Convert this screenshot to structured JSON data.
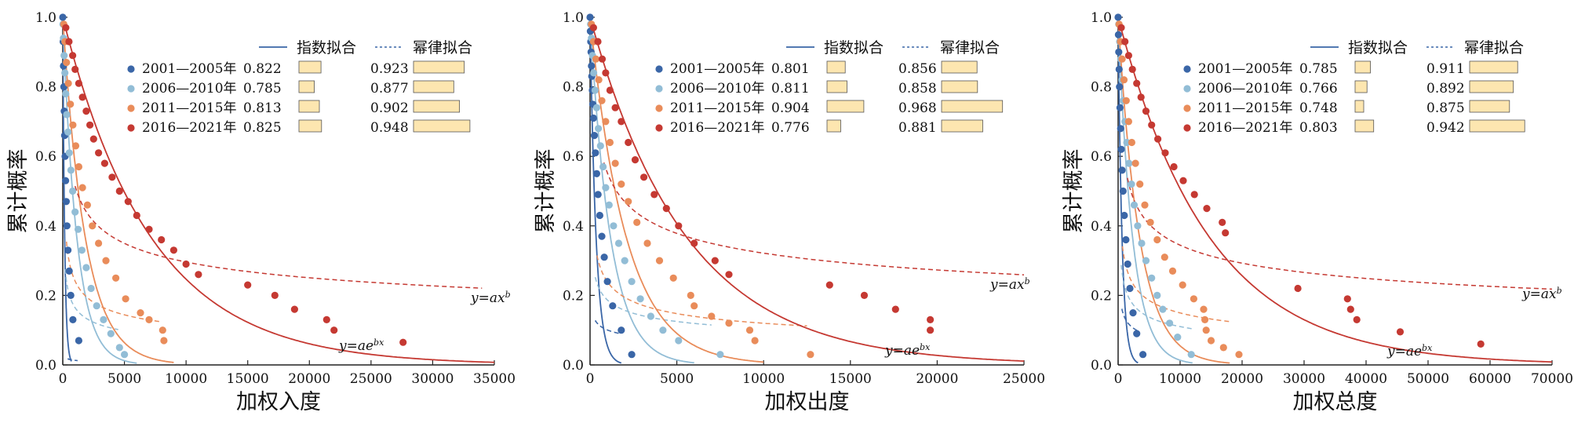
{
  "legend_titles": {
    "exp": "指数拟合",
    "pow": "幂律拟合"
  },
  "annotations": {
    "pow": "y=ax^b",
    "exp": "y=ae^bx"
  },
  "periods": [
    "2001—2005年",
    "2006—2010年",
    "2011—2015年",
    "2016—2021年"
  ],
  "colors": {
    "p1": "#3a66a7",
    "p2": "#92bdd6",
    "p3": "#e98c5a",
    "p4": "#c53932",
    "bar": "#fde6b0",
    "bar_edge": "#555555",
    "axis": "#222222"
  },
  "chart_data": [
    {
      "type": "scatter",
      "ylabel": "累计概率",
      "xlabel": "加权入度",
      "xlim": [
        0,
        35000
      ],
      "ylim": [
        0,
        1.0
      ],
      "xticks": [
        0,
        5000,
        10000,
        15000,
        20000,
        25000,
        30000,
        35000
      ],
      "yticks": [
        0.0,
        0.2,
        0.4,
        0.6,
        0.8,
        1.0
      ],
      "r2": [
        [
          0.822,
          0.923
        ],
        [
          0.785,
          0.877
        ],
        [
          0.813,
          0.902
        ],
        [
          0.825,
          0.948
        ]
      ],
      "series": [
        {
          "color": "#3a66a7",
          "x": [
            0,
            30,
            60,
            90,
            120,
            150,
            190,
            230,
            280,
            340,
            420,
            520,
            650,
            820,
            1300
          ],
          "y": [
            1.0,
            0.93,
            0.86,
            0.8,
            0.73,
            0.66,
            0.6,
            0.53,
            0.47,
            0.4,
            0.33,
            0.27,
            0.2,
            0.13,
            0.07
          ],
          "exp": [
            1.0,
            -0.0065,
            0,
            700
          ],
          "pow": [
            0.12,
            -0.32,
            400,
            1200
          ]
        },
        {
          "color": "#92bdd6",
          "x": [
            20,
            60,
            110,
            170,
            240,
            320,
            420,
            530,
            660,
            800,
            1000,
            1250,
            1550,
            1900,
            2300,
            2750,
            3300,
            3900,
            4600,
            5000
          ],
          "y": [
            0.98,
            0.94,
            0.89,
            0.84,
            0.78,
            0.72,
            0.67,
            0.61,
            0.56,
            0.5,
            0.44,
            0.39,
            0.33,
            0.28,
            0.22,
            0.17,
            0.13,
            0.09,
            0.05,
            0.03
          ],
          "exp": [
            1.0,
            -0.00088,
            0,
            6000
          ],
          "pow": [
            1.5,
            -0.32,
            200,
            4500
          ]
        },
        {
          "color": "#e98c5a",
          "x": [
            80,
            180,
            300,
            450,
            620,
            820,
            1050,
            1300,
            1600,
            2000,
            2400,
            2900,
            3500,
            4300,
            5100,
            6300,
            7000,
            8100,
            8200
          ],
          "y": [
            0.98,
            0.93,
            0.87,
            0.81,
            0.75,
            0.69,
            0.63,
            0.57,
            0.51,
            0.46,
            0.4,
            0.35,
            0.3,
            0.25,
            0.19,
            0.15,
            0.13,
            0.1,
            0.07
          ],
          "exp": [
            1.0,
            -0.00055,
            0,
            9000
          ],
          "pow": [
            2.2,
            -0.32,
            300,
            8000
          ]
        },
        {
          "color": "#c53932",
          "x": [
            250,
            500,
            800,
            1000,
            1300,
            1600,
            1900,
            2200,
            2500,
            2900,
            3400,
            4000,
            4600,
            5300,
            6000,
            7000,
            8000,
            9000,
            10000,
            11000,
            15000,
            17200,
            18800,
            21400,
            22000,
            27600
          ],
          "y": [
            0.97,
            0.93,
            0.89,
            0.85,
            0.81,
            0.77,
            0.73,
            0.69,
            0.65,
            0.61,
            0.58,
            0.54,
            0.5,
            0.47,
            0.43,
            0.39,
            0.36,
            0.33,
            0.29,
            0.26,
            0.23,
            0.2,
            0.16,
            0.13,
            0.1,
            0.065
          ],
          "exp": [
            1.0,
            -0.00014,
            0,
            35000
          ],
          "pow": [
            2.7,
            -0.24,
            1000,
            34000
          ]
        }
      ]
    },
    {
      "type": "scatter",
      "ylabel": "累计概率",
      "xlabel": "加权出度",
      "xlim": [
        0,
        25000
      ],
      "ylim": [
        0,
        1.0
      ],
      "xticks": [
        0,
        5000,
        10000,
        15000,
        20000,
        25000
      ],
      "yticks": [
        0.0,
        0.2,
        0.4,
        0.6,
        0.8,
        1.0
      ],
      "r2": [
        [
          0.801,
          0.856
        ],
        [
          0.811,
          0.858
        ],
        [
          0.904,
          0.968
        ],
        [
          0.776,
          0.881
        ]
      ],
      "series": [
        {
          "color": "#3a66a7",
          "x": [
            0,
            20,
            40,
            60,
            80,
            100,
            130,
            160,
            200,
            250,
            310,
            380,
            460,
            560,
            680,
            820,
            1000,
            1300,
            1800,
            2400
          ],
          "y": [
            1.0,
            0.96,
            0.93,
            0.9,
            0.86,
            0.83,
            0.79,
            0.75,
            0.71,
            0.66,
            0.61,
            0.55,
            0.49,
            0.43,
            0.37,
            0.31,
            0.24,
            0.17,
            0.1,
            0.03
          ],
          "exp": [
            1.0,
            -0.0029,
            0,
            1800
          ],
          "pow": [
            0.4,
            -0.2,
            300,
            1700
          ]
        },
        {
          "color": "#92bdd6",
          "x": [
            30,
            80,
            140,
            210,
            290,
            380,
            480,
            600,
            750,
            900,
            1100,
            1350,
            1650,
            2000,
            2400,
            2900,
            3500,
            4200,
            5100,
            7500
          ],
          "y": [
            0.98,
            0.94,
            0.89,
            0.84,
            0.79,
            0.74,
            0.68,
            0.63,
            0.57,
            0.51,
            0.46,
            0.4,
            0.35,
            0.3,
            0.24,
            0.19,
            0.14,
            0.1,
            0.07,
            0.03
          ],
          "exp": [
            1.0,
            -0.00085,
            0,
            6000
          ],
          "pow": [
            1.05,
            -0.25,
            300,
            7000
          ]
        },
        {
          "color": "#e98c5a",
          "x": [
            80,
            200,
            340,
            500,
            680,
            900,
            1150,
            1450,
            1800,
            2200,
            2700,
            3300,
            4000,
            4800,
            5800,
            6000,
            7000,
            8000,
            9200,
            9500,
            12700
          ],
          "y": [
            0.98,
            0.93,
            0.88,
            0.82,
            0.76,
            0.7,
            0.64,
            0.58,
            0.52,
            0.47,
            0.41,
            0.35,
            0.3,
            0.25,
            0.2,
            0.17,
            0.14,
            0.12,
            0.1,
            0.07,
            0.03
          ],
          "exp": [
            1.0,
            -0.00048,
            0,
            10000
          ],
          "pow": [
            1.9,
            -0.3,
            400,
            12500
          ]
        },
        {
          "color": "#c53932",
          "x": [
            200,
            450,
            700,
            900,
            1150,
            1450,
            1800,
            2200,
            2600,
            3100,
            3700,
            4400,
            5100,
            6000,
            7200,
            8000,
            13800,
            15800,
            17600,
            19600,
            19600
          ],
          "y": [
            0.97,
            0.93,
            0.88,
            0.84,
            0.79,
            0.74,
            0.7,
            0.64,
            0.59,
            0.54,
            0.49,
            0.45,
            0.4,
            0.35,
            0.3,
            0.26,
            0.23,
            0.2,
            0.16,
            0.13,
            0.1
          ],
          "exp": [
            1.0,
            -0.00018,
            0,
            25000
          ],
          "pow": [
            2.8,
            -0.235,
            800,
            25000
          ]
        }
      ]
    },
    {
      "type": "scatter",
      "ylabel": "累计概率",
      "xlabel": "加权总度",
      "xlim": [
        0,
        70000
      ],
      "ylim": [
        0,
        1.0
      ],
      "xticks": [
        0,
        10000,
        20000,
        30000,
        40000,
        50000,
        60000,
        70000
      ],
      "yticks": [
        0.0,
        0.2,
        0.4,
        0.6,
        0.8,
        1.0
      ],
      "r2": [
        [
          0.785,
          0.911
        ],
        [
          0.766,
          0.892
        ],
        [
          0.748,
          0.875
        ],
        [
          0.803,
          0.942
        ]
      ],
      "series": [
        {
          "color": "#3a66a7",
          "x": [
            0,
            50,
            100,
            160,
            230,
            310,
            400,
            510,
            640,
            800,
            1000,
            1250,
            1550,
            1900,
            2400,
            3000,
            4000
          ],
          "y": [
            1.0,
            0.95,
            0.9,
            0.85,
            0.8,
            0.74,
            0.68,
            0.62,
            0.56,
            0.5,
            0.43,
            0.36,
            0.29,
            0.22,
            0.15,
            0.09,
            0.03
          ],
          "exp": [
            1.0,
            -0.0016,
            0,
            3200
          ],
          "pow": [
            1.1,
            -0.3,
            600,
            3500
          ]
        },
        {
          "color": "#92bdd6",
          "x": [
            100,
            250,
            420,
            620,
            850,
            1100,
            1400,
            1750,
            2150,
            2600,
            3150,
            3800,
            4500,
            5400,
            6300,
            7200,
            8300,
            9600,
            11800
          ],
          "y": [
            0.98,
            0.93,
            0.88,
            0.82,
            0.76,
            0.7,
            0.64,
            0.58,
            0.52,
            0.46,
            0.4,
            0.35,
            0.3,
            0.25,
            0.2,
            0.16,
            0.12,
            0.08,
            0.03
          ],
          "exp": [
            1.0,
            -0.00043,
            0,
            12000
          ],
          "pow": [
            2.1,
            -0.32,
            500,
            12000
          ]
        },
        {
          "color": "#e98c5a",
          "x": [
            150,
            380,
            650,
            950,
            1300,
            1700,
            2200,
            2800,
            3500,
            4300,
            5200,
            6300,
            7500,
            8800,
            10400,
            12200,
            13800,
            14000,
            14200,
            15000,
            17000,
            19500
          ],
          "y": [
            0.98,
            0.93,
            0.88,
            0.82,
            0.76,
            0.7,
            0.64,
            0.58,
            0.52,
            0.46,
            0.41,
            0.36,
            0.31,
            0.27,
            0.23,
            0.19,
            0.16,
            0.13,
            0.1,
            0.07,
            0.05,
            0.03
          ],
          "exp": [
            1.0,
            -0.00029,
            0,
            18000
          ],
          "pow": [
            2.6,
            -0.31,
            700,
            18000
          ]
        },
        {
          "color": "#c53932",
          "x": [
            500,
            1100,
            1700,
            2300,
            3000,
            3700,
            4500,
            5400,
            6400,
            7600,
            9000,
            10500,
            12300,
            14300,
            16800,
            17300,
            29000,
            37000,
            37500,
            38500,
            45500,
            58500
          ],
          "y": [
            0.97,
            0.93,
            0.89,
            0.85,
            0.81,
            0.77,
            0.73,
            0.69,
            0.65,
            0.61,
            0.57,
            0.53,
            0.49,
            0.45,
            0.41,
            0.38,
            0.22,
            0.19,
            0.16,
            0.13,
            0.095,
            0.06
          ],
          "exp": [
            1.0,
            -6.8e-05,
            0,
            70000
          ],
          "pow": [
            3.0,
            -0.235,
            1500,
            70000
          ]
        }
      ]
    }
  ]
}
